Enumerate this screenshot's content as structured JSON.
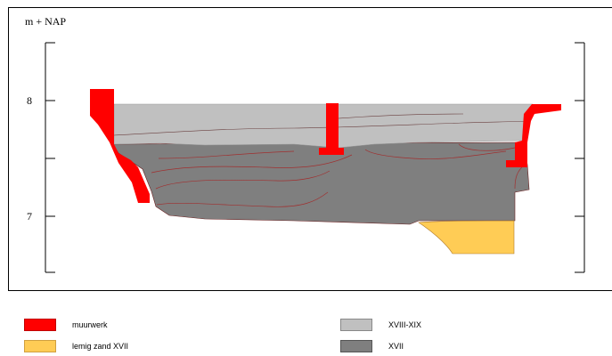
{
  "axis": {
    "unit_label": "m + NAP",
    "tick_8": "8",
    "tick_7": "7"
  },
  "colors": {
    "muurwerk": "#ff0000",
    "lemig_zand": "#ffcc55",
    "xviii_xix": "#c0c0c0",
    "xvii": "#7f7f7f",
    "lines": "#b03030"
  },
  "legend": {
    "items": [
      {
        "label": "muurwerk",
        "color": "#ff0000"
      },
      {
        "label": "lemig zand XVII",
        "color": "#ffcc55"
      },
      {
        "label": "XVIII-XIX",
        "color": "#c0c0c0"
      },
      {
        "label": "XVII",
        "color": "#7f7f7f"
      }
    ]
  }
}
